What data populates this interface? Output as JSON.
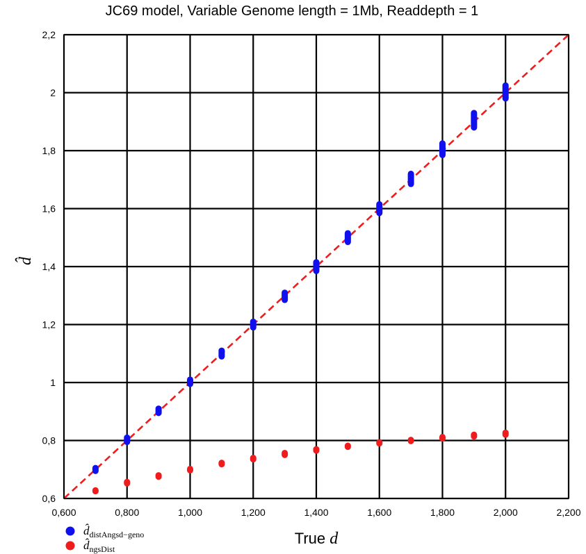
{
  "chart_data": {
    "type": "scatter",
    "title": "JC69 model, Variable Genome length = 1Mb, Readdepth = 1",
    "xlabel": {
      "text": "True ",
      "var": "d"
    },
    "ylabel": "d̂",
    "xlim": [
      0.6,
      2.2
    ],
    "ylim": [
      0.6,
      2.2
    ],
    "x_ticks": [
      0.6,
      0.8,
      1.0,
      1.2,
      1.4,
      1.6,
      1.8,
      2.0,
      2.2
    ],
    "x_tick_labels": [
      "0,600",
      "0,800",
      "1,000",
      "1,200",
      "1,400",
      "1,600",
      "1,800",
      "2,000",
      "2,200"
    ],
    "y_ticks": [
      0.6,
      0.8,
      1.0,
      1.2,
      1.4,
      1.6,
      1.8,
      2.0,
      2.2
    ],
    "y_tick_labels": [
      "0,6",
      "0,8",
      "1",
      "1,2",
      "1,4",
      "1,6",
      "1,8",
      "2",
      "2,2"
    ],
    "grid": true,
    "reference_line": {
      "style": "dashed",
      "color": "#ee1c1c",
      "from": [
        0.6,
        0.6
      ],
      "to": [
        2.2,
        2.2
      ]
    },
    "legend_position": "bottom-left",
    "series": [
      {
        "name": "distAngsd−geno",
        "color": "#1010ee",
        "x": [
          0.7,
          0.8,
          0.9,
          1.0,
          1.1,
          1.2,
          1.3,
          1.4,
          1.5,
          1.6,
          1.7,
          1.8,
          1.9,
          2.0
        ],
        "y_low": [
          0.695,
          0.795,
          0.895,
          0.995,
          1.09,
          1.19,
          1.285,
          1.385,
          1.485,
          1.585,
          1.685,
          1.785,
          1.88,
          1.98
        ],
        "y_high": [
          0.705,
          0.81,
          0.91,
          1.01,
          1.11,
          1.21,
          1.31,
          1.415,
          1.515,
          1.615,
          1.72,
          1.825,
          1.93,
          2.025
        ]
      },
      {
        "name": "ngsDist",
        "color": "#ee1c1c",
        "x": [
          0.7,
          0.8,
          0.9,
          1.0,
          1.1,
          1.2,
          1.3,
          1.4,
          1.5,
          1.6,
          1.7,
          1.8,
          1.9,
          2.0
        ],
        "y_low": [
          0.625,
          0.652,
          0.675,
          0.697,
          0.718,
          0.735,
          0.75,
          0.765,
          0.778,
          0.79,
          0.798,
          0.807,
          0.814,
          0.82
        ],
        "y_high": [
          0.628,
          0.657,
          0.68,
          0.702,
          0.723,
          0.74,
          0.757,
          0.77,
          0.782,
          0.794,
          0.802,
          0.812,
          0.82,
          0.827
        ]
      }
    ]
  }
}
